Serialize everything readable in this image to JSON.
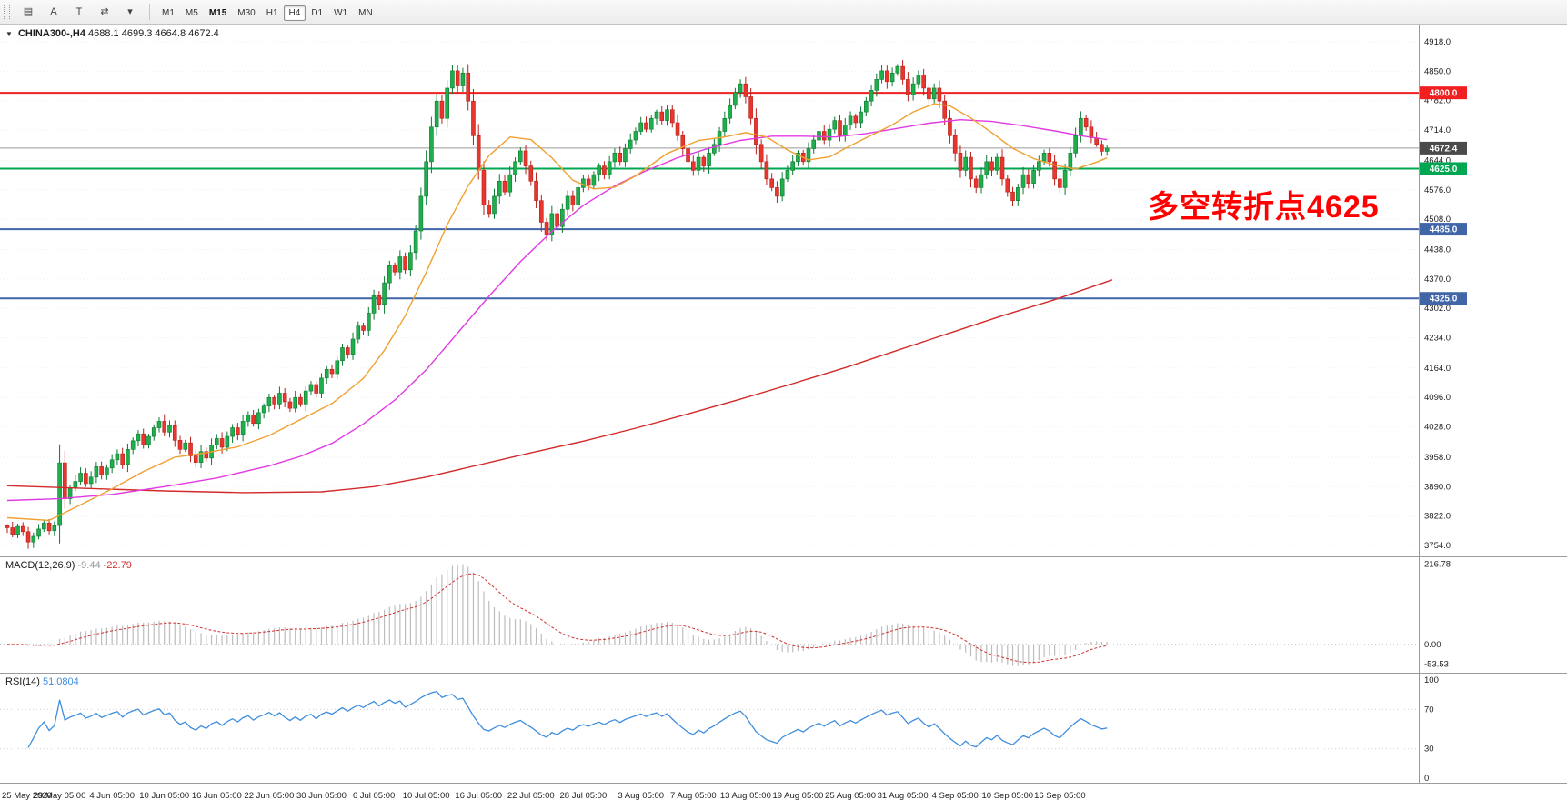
{
  "toolbar": {
    "icons": [
      {
        "name": "charts-window-icon",
        "glyph": "▤"
      },
      {
        "name": "cursor-tool-icon",
        "glyph": "A"
      },
      {
        "name": "text-tool-icon",
        "glyph": "T"
      },
      {
        "name": "scale-tool-icon",
        "glyph": "⇄"
      },
      {
        "name": "dropdown-caret-icon",
        "glyph": "▾"
      }
    ],
    "timeframes": [
      {
        "label": "M1"
      },
      {
        "label": "M5"
      },
      {
        "label": "M15",
        "bold": true
      },
      {
        "label": "M30"
      },
      {
        "label": "H1"
      },
      {
        "label": "H4",
        "active": true
      },
      {
        "label": "D1"
      },
      {
        "label": "W1"
      },
      {
        "label": "MN"
      }
    ]
  },
  "chart": {
    "symbol": "CHINA300-,H4",
    "ohlc_text": "4688.1 4699.3 4664.8 4672.4",
    "annotation": {
      "text": "多空转折点4625",
      "color": "#ff0000"
    }
  },
  "chart_data": {
    "type": "candlestick",
    "title": "CHINA300-,H4",
    "symbol": "CHINA300",
    "timeframe": "H4",
    "current_bar": {
      "open": 4688.1,
      "high": 4699.3,
      "low": 4664.8,
      "close": 4672.4
    },
    "y_axis_labels": [
      "4918.0",
      "4850.0",
      "4782.0",
      "4714.0",
      "4644.0",
      "4576.0",
      "4508.0",
      "4438.0",
      "4370.0",
      "4302.0",
      "4234.0",
      "4164.0",
      "4096.0",
      "4028.0",
      "3958.0",
      "3890.0",
      "3822.0",
      "3754.0"
    ],
    "y_range": [
      3754,
      4918
    ],
    "x_axis_labels": [
      {
        "label": "25 May 2020",
        "i": 0
      },
      {
        "label": "29 May 05:00",
        "i": 10
      },
      {
        "label": "4 Jun 05:00",
        "i": 20
      },
      {
        "label": "10 Jun 05:00",
        "i": 30
      },
      {
        "label": "16 Jun 05:00",
        "i": 40
      },
      {
        "label": "22 Jun 05:00",
        "i": 50
      },
      {
        "label": "30 Jun 05:00",
        "i": 60
      },
      {
        "label": "6 Jul 05:00",
        "i": 70
      },
      {
        "label": "10 Jul 05:00",
        "i": 80
      },
      {
        "label": "16 Jul 05:00",
        "i": 90
      },
      {
        "label": "22 Jul 05:00",
        "i": 100
      },
      {
        "label": "28 Jul 05:00",
        "i": 110
      },
      {
        "label": "3 Aug 05:00",
        "i": 121
      },
      {
        "label": "7 Aug 05:00",
        "i": 131
      },
      {
        "label": "13 Aug 05:00",
        "i": 141
      },
      {
        "label": "19 Aug 05:00",
        "i": 151
      },
      {
        "label": "25 Aug 05:00",
        "i": 161
      },
      {
        "label": "31 Aug 05:00",
        "i": 171
      },
      {
        "label": "4 Sep 05:00",
        "i": 181
      },
      {
        "label": "10 Sep 05:00",
        "i": 191
      },
      {
        "label": "16 Sep 05:00",
        "i": 201
      }
    ],
    "levels": [
      {
        "price": 4800.0,
        "label": "4800.0",
        "color": "#f02020",
        "badge": "#f02020",
        "width": 2
      },
      {
        "price": 4672.4,
        "label": "4672.4",
        "color": "#9a9a9a",
        "badge": "#4a4a4a",
        "width": 1,
        "current": true
      },
      {
        "price": 4625.0,
        "label": "4625.0",
        "color": "#00a651",
        "badge": "#00a651",
        "width": 2
      },
      {
        "price": 4485.0,
        "label": "4485.0",
        "color": "#4066a8",
        "badge": "#4066a8",
        "width": 2
      },
      {
        "price": 4325.0,
        "label": "4325.0",
        "color": "#4066a8",
        "badge": "#4066a8",
        "width": 2
      }
    ],
    "first_open": 3800,
    "closes_approx": [
      3795,
      3780,
      3798,
      3786,
      3762,
      3775,
      3792,
      3806,
      3788,
      3800,
      3945,
      3862,
      3886,
      3902,
      3921,
      3897,
      3912,
      3936,
      3917,
      3933,
      3952,
      3966,
      3941,
      3976,
      3996,
      4012,
      3987,
      4006,
      4026,
      4041,
      4016,
      4031,
      3997,
      3976,
      3991,
      3961,
      3946,
      3971,
      3956,
      3986,
      4001,
      3981,
      4006,
      4026,
      4011,
      4041,
      4056,
      4036,
      4061,
      4076,
      4096,
      4081,
      4106,
      4086,
      4071,
      4096,
      4081,
      4111,
      4126,
      4106,
      4141,
      4161,
      4151,
      4181,
      4211,
      4196,
      4231,
      4261,
      4251,
      4291,
      4331,
      4311,
      4361,
      4401,
      4386,
      4421,
      4391,
      4431,
      4481,
      4561,
      4641,
      4721,
      4781,
      4741,
      4811,
      4851,
      4816,
      4846,
      4781,
      4701,
      4621,
      4541,
      4521,
      4561,
      4596,
      4571,
      4611,
      4641,
      4666,
      4631,
      4596,
      4551,
      4501,
      4471,
      4521,
      4491,
      4531,
      4561,
      4541,
      4581,
      4601,
      4586,
      4611,
      4631,
      4611,
      4641,
      4661,
      4641,
      4671,
      4691,
      4711,
      4731,
      4716,
      4741,
      4756,
      4736,
      4761,
      4731,
      4701,
      4671,
      4641,
      4621,
      4651,
      4631,
      4661,
      4681,
      4711,
      4741,
      4771,
      4801,
      4821,
      4791,
      4741,
      4681,
      4641,
      4601,
      4581,
      4561,
      4601,
      4621,
      4641,
      4661,
      4641,
      4671,
      4691,
      4711,
      4691,
      4716,
      4736,
      4701,
      4726,
      4746,
      4731,
      4756,
      4781,
      4806,
      4831,
      4851,
      4826,
      4846,
      4861,
      4831,
      4796,
      4821,
      4841,
      4811,
      4786,
      4811,
      4781,
      4741,
      4701,
      4661,
      4621,
      4651,
      4601,
      4581,
      4611,
      4641,
      4621,
      4651,
      4601,
      4571,
      4551,
      4581,
      4611,
      4591,
      4621,
      4641,
      4661,
      4641,
      4601,
      4581,
      4621,
      4661,
      4701,
      4741,
      4721,
      4696,
      4681,
      4665,
      4672.4
    ],
    "ma_fast_points": [
      [
        0,
        3818
      ],
      [
        8,
        3812
      ],
      [
        14,
        3848
      ],
      [
        20,
        3885
      ],
      [
        26,
        3925
      ],
      [
        32,
        3958
      ],
      [
        38,
        3968
      ],
      [
        44,
        3982
      ],
      [
        50,
        4008
      ],
      [
        56,
        4045
      ],
      [
        62,
        4082
      ],
      [
        68,
        4140
      ],
      [
        72,
        4205
      ],
      [
        76,
        4285
      ],
      [
        80,
        4385
      ],
      [
        84,
        4495
      ],
      [
        88,
        4585
      ],
      [
        92,
        4655
      ],
      [
        96,
        4698
      ],
      [
        100,
        4692
      ],
      [
        104,
        4650
      ],
      [
        108,
        4598
      ],
      [
        112,
        4578
      ],
      [
        116,
        4582
      ],
      [
        120,
        4608
      ],
      [
        126,
        4660
      ],
      [
        132,
        4690
      ],
      [
        137,
        4698
      ],
      [
        141,
        4708
      ],
      [
        145,
        4698
      ],
      [
        149,
        4668
      ],
      [
        153,
        4645
      ],
      [
        157,
        4652
      ],
      [
        161,
        4678
      ],
      [
        165,
        4702
      ],
      [
        169,
        4726
      ],
      [
        173,
        4756
      ],
      [
        177,
        4775
      ],
      [
        180,
        4770
      ],
      [
        184,
        4742
      ],
      [
        188,
        4708
      ],
      [
        192,
        4672
      ],
      [
        196,
        4648
      ],
      [
        200,
        4633
      ],
      [
        204,
        4624
      ],
      [
        208,
        4640
      ],
      [
        210,
        4650
      ]
    ],
    "ma_mid_points": [
      [
        0,
        3858
      ],
      [
        10,
        3862
      ],
      [
        20,
        3872
      ],
      [
        30,
        3890
      ],
      [
        40,
        3910
      ],
      [
        50,
        3938
      ],
      [
        56,
        3960
      ],
      [
        62,
        3990
      ],
      [
        68,
        4035
      ],
      [
        74,
        4090
      ],
      [
        80,
        4160
      ],
      [
        86,
        4245
      ],
      [
        92,
        4330
      ],
      [
        98,
        4410
      ],
      [
        104,
        4480
      ],
      [
        110,
        4540
      ],
      [
        116,
        4585
      ],
      [
        122,
        4620
      ],
      [
        128,
        4650
      ],
      [
        134,
        4672
      ],
      [
        140,
        4690
      ],
      [
        146,
        4700
      ],
      [
        152,
        4700
      ],
      [
        158,
        4698
      ],
      [
        164,
        4706
      ],
      [
        170,
        4718
      ],
      [
        176,
        4730
      ],
      [
        182,
        4738
      ],
      [
        188,
        4734
      ],
      [
        194,
        4724
      ],
      [
        200,
        4712
      ],
      [
        205,
        4701
      ],
      [
        210,
        4692
      ]
    ],
    "ma_slow_points": [
      [
        0,
        3892
      ],
      [
        15,
        3886
      ],
      [
        30,
        3880
      ],
      [
        45,
        3876
      ],
      [
        60,
        3878
      ],
      [
        70,
        3890
      ],
      [
        80,
        3912
      ],
      [
        90,
        3940
      ],
      [
        100,
        3968
      ],
      [
        110,
        3995
      ],
      [
        120,
        4025
      ],
      [
        130,
        4058
      ],
      [
        140,
        4092
      ],
      [
        150,
        4128
      ],
      [
        160,
        4165
      ],
      [
        170,
        4205
      ],
      [
        180,
        4245
      ],
      [
        190,
        4285
      ],
      [
        200,
        4322
      ],
      [
        211,
        4368
      ]
    ],
    "colors": {
      "up": "#1fae4b",
      "up_border": "#0b7a32",
      "down": "#e8352e",
      "down_border": "#b7201a",
      "ma_fast": "#f0a030",
      "ma_mid": "#e23ae2",
      "ma_slow": "#d22a2a",
      "rsi": "#3f8ede",
      "macd_hist": "#bdbdbd",
      "macd_signal": "#d03030",
      "grid": "#efefef"
    },
    "macd": {
      "label": "MACD(12,26,9)",
      "display_values": [
        "-9.44",
        "-22.79"
      ],
      "axis_labels": [
        "216.78",
        "0.00",
        "-53.53"
      ],
      "axis_values": [
        216.78,
        0,
        -53.53
      ],
      "params": [
        12,
        26,
        9
      ]
    },
    "rsi": {
      "label": "RSI(14)",
      "display_value": "51.0804",
      "axis_labels": [
        "100",
        "70",
        "30",
        "0"
      ],
      "axis_values": [
        100,
        70,
        30,
        0
      ],
      "period": 14
    }
  }
}
